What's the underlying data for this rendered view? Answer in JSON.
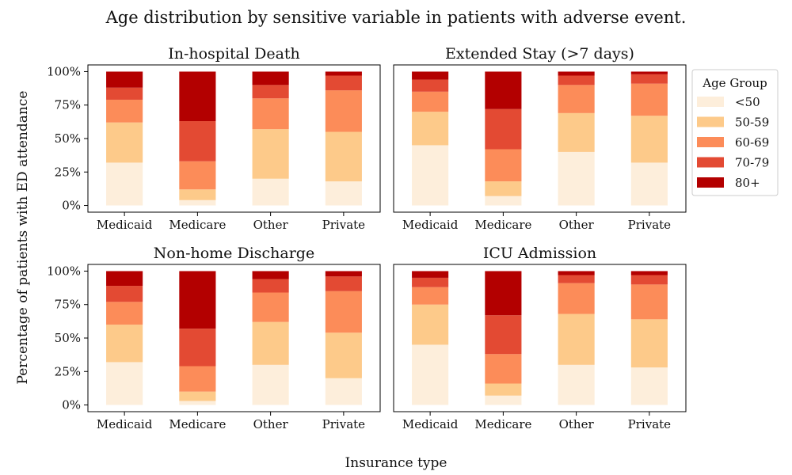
{
  "figure": {
    "suptitle": "Age distribution by sensitive variable in patients with adverse event.",
    "shared_ylabel": "Percentage of patients with ED attendance",
    "shared_xlabel": "Insurance type"
  },
  "legend": {
    "title": "Age Group",
    "placement": "right of top-right panel",
    "items": [
      "<50",
      "50-59",
      "60-69",
      "70-79",
      "80+"
    ]
  },
  "colors": {
    "<50": "#fdeedb",
    "50-59": "#fdca8a",
    "60-69": "#fc8c59",
    "70-79": "#e34a33",
    "80+": "#b30000"
  },
  "chart_data": [
    {
      "type": "bar",
      "stacked": true,
      "title": "In-hospital Death",
      "categories": [
        "Medicaid",
        "Medicare",
        "Other",
        "Private"
      ],
      "ylim": [
        0,
        100
      ],
      "yticks": [
        "0%",
        "25%",
        "50%",
        "75%",
        "100%"
      ],
      "series": [
        {
          "name": "<50",
          "values": [
            32,
            4,
            20,
            18
          ]
        },
        {
          "name": "50-59",
          "values": [
            30,
            8,
            37,
            37
          ]
        },
        {
          "name": "60-69",
          "values": [
            17,
            21,
            23,
            31
          ]
        },
        {
          "name": "70-79",
          "values": [
            9,
            30,
            10,
            11
          ]
        },
        {
          "name": "80+",
          "values": [
            12,
            37,
            10,
            3
          ]
        }
      ]
    },
    {
      "type": "bar",
      "stacked": true,
      "title": "Extended Stay (>7 days)",
      "categories": [
        "Medicaid",
        "Medicare",
        "Other",
        "Private"
      ],
      "ylim": [
        0,
        100
      ],
      "yticks": [],
      "series": [
        {
          "name": "<50",
          "values": [
            45,
            7,
            40,
            32
          ]
        },
        {
          "name": "50-59",
          "values": [
            25,
            11,
            29,
            35
          ]
        },
        {
          "name": "60-69",
          "values": [
            15,
            24,
            21,
            24
          ]
        },
        {
          "name": "70-79",
          "values": [
            9,
            30,
            7,
            7
          ]
        },
        {
          "name": "80+",
          "values": [
            6,
            28,
            3,
            2
          ]
        }
      ]
    },
    {
      "type": "bar",
      "stacked": true,
      "title": "Non-home Discharge",
      "categories": [
        "Medicaid",
        "Medicare",
        "Other",
        "Private"
      ],
      "ylim": [
        0,
        100
      ],
      "yticks": [
        "0%",
        "25%",
        "50%",
        "75%",
        "100%"
      ],
      "series": [
        {
          "name": "<50",
          "values": [
            32,
            3,
            30,
            20
          ]
        },
        {
          "name": "50-59",
          "values": [
            28,
            7,
            32,
            34
          ]
        },
        {
          "name": "60-69",
          "values": [
            17,
            19,
            22,
            31
          ]
        },
        {
          "name": "70-79",
          "values": [
            12,
            28,
            10,
            11
          ]
        },
        {
          "name": "80+",
          "values": [
            11,
            43,
            6,
            4
          ]
        }
      ]
    },
    {
      "type": "bar",
      "stacked": true,
      "title": "ICU Admission",
      "categories": [
        "Medicaid",
        "Medicare",
        "Other",
        "Private"
      ],
      "ylim": [
        0,
        100
      ],
      "yticks": [],
      "series": [
        {
          "name": "<50",
          "values": [
            45,
            7,
            30,
            28
          ]
        },
        {
          "name": "50-59",
          "values": [
            30,
            9,
            38,
            36
          ]
        },
        {
          "name": "60-69",
          "values": [
            13,
            22,
            23,
            26
          ]
        },
        {
          "name": "70-79",
          "values": [
            7,
            29,
            6,
            7
          ]
        },
        {
          "name": "80+",
          "values": [
            5,
            33,
            3,
            3
          ]
        }
      ]
    }
  ]
}
